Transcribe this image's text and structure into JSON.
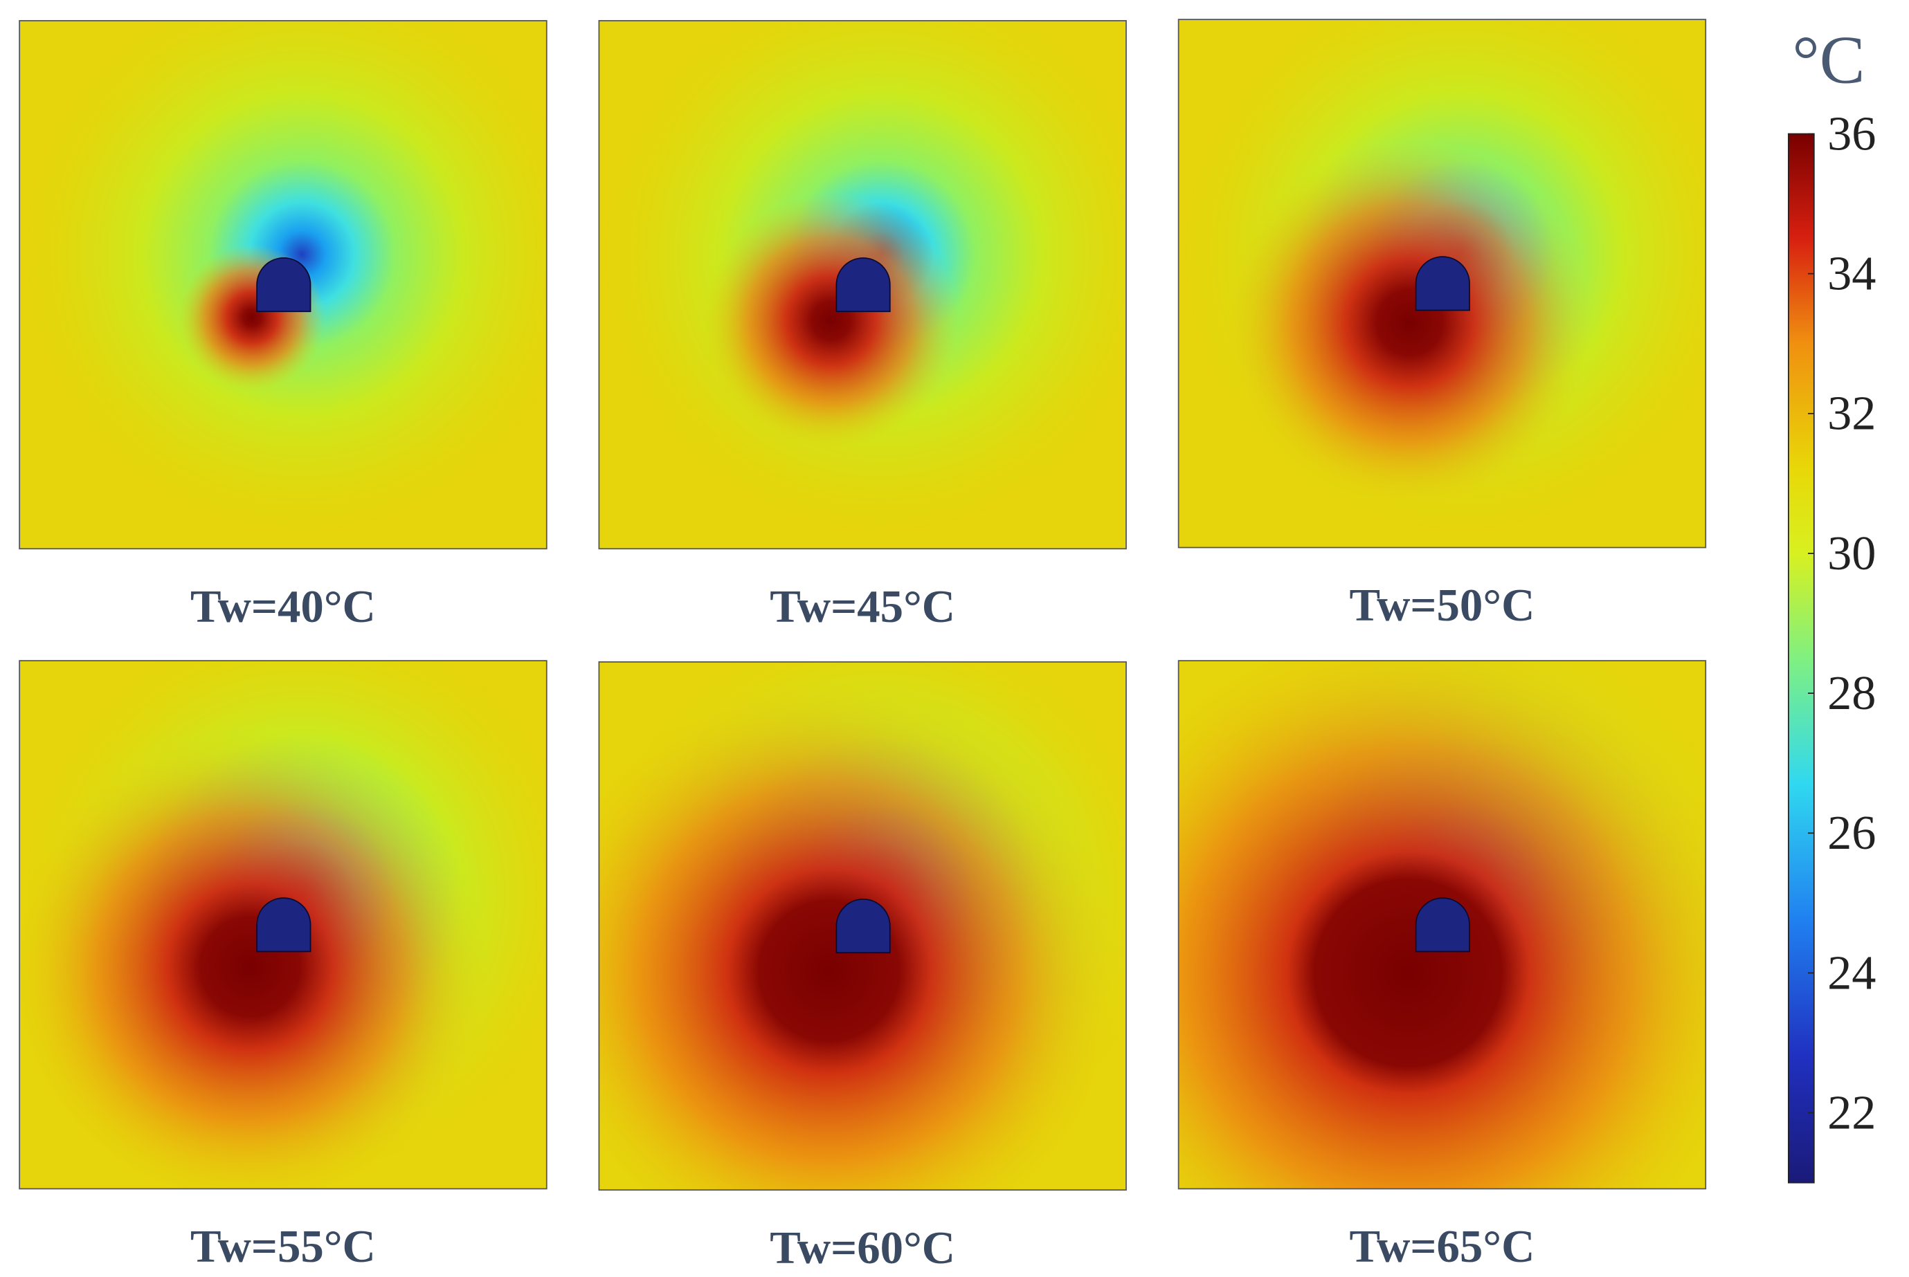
{
  "chart_data": {
    "type": "contour",
    "panels": [
      {
        "title": "Tw=40°C"
      },
      {
        "title": "Tw=45°C"
      },
      {
        "title": "Tw=50°C"
      },
      {
        "title": "Tw=55°C"
      },
      {
        "title": "Tw=60°C"
      },
      {
        "title": "Tw=65°C"
      }
    ],
    "colorbar": {
      "label": "°C",
      "lim": [
        21,
        36
      ],
      "ticks": [
        22,
        24,
        26,
        28,
        30,
        32,
        34,
        36
      ]
    }
  }
}
